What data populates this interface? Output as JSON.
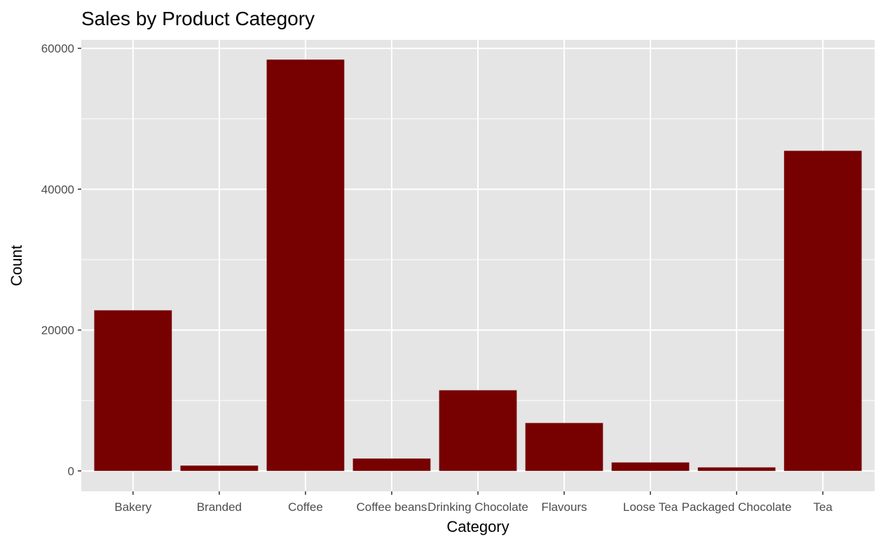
{
  "chart_data": {
    "type": "bar",
    "title": "Sales by Product Category",
    "xlabel": "Category",
    "ylabel": "Count",
    "categories": [
      "Bakery",
      "Branded",
      "Coffee",
      "Coffee beans",
      "Drinking Chocolate",
      "Flavours",
      "Loose Tea",
      "Packaged Chocolate",
      "Tea"
    ],
    "values": [
      22800,
      750,
      58400,
      1750,
      11450,
      6800,
      1200,
      500,
      45450
    ],
    "yticks": [
      0,
      20000,
      40000,
      60000
    ],
    "ytick_labels": [
      "0",
      "20000",
      "40000",
      "60000"
    ],
    "ylim": [
      -2900,
      61200
    ],
    "bar_color": "#770000",
    "panel_background": "#e5e5e5",
    "grid_color": "#ffffff",
    "grid": true,
    "legend": "none"
  }
}
